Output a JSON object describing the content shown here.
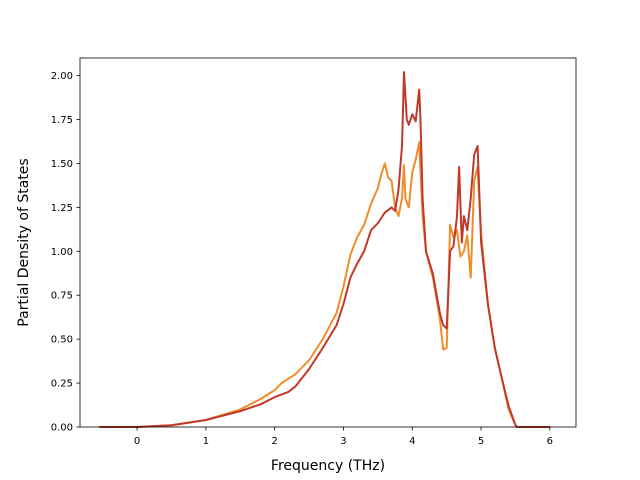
{
  "chart_data": {
    "type": "line",
    "xlabel": "Frequency (THz)",
    "ylabel": "Partial Density of States",
    "xlim": [
      -0.83,
      6.38
    ],
    "ylim": [
      0,
      2.1
    ],
    "xticks": [
      0,
      1,
      2,
      3,
      4,
      5,
      6
    ],
    "yticks": [
      "0.00",
      "0.25",
      "0.50",
      "0.75",
      "1.00",
      "1.25",
      "1.50",
      "1.75",
      "2.00"
    ],
    "grid": false,
    "legend": "none",
    "series": [
      {
        "color": "#f08c2a",
        "x": [
          -0.55,
          0.0,
          0.5,
          1.0,
          1.5,
          1.8,
          2.0,
          2.1,
          2.3,
          2.5,
          2.7,
          2.9,
          3.0,
          3.1,
          3.2,
          3.3,
          3.4,
          3.5,
          3.55,
          3.6,
          3.65,
          3.7,
          3.75,
          3.8,
          3.85,
          3.88,
          3.9,
          3.95,
          4.0,
          4.05,
          4.1,
          4.15,
          4.2,
          4.3,
          4.4,
          4.45,
          4.5,
          4.55,
          4.6,
          4.65,
          4.7,
          4.75,
          4.8,
          4.85,
          4.9,
          4.95,
          5.0,
          5.1,
          5.2,
          5.3,
          5.4,
          5.5,
          5.52,
          5.6,
          6.0
        ],
        "y": [
          0.0,
          0.0,
          0.01,
          0.04,
          0.1,
          0.16,
          0.21,
          0.25,
          0.3,
          0.38,
          0.5,
          0.65,
          0.8,
          0.98,
          1.08,
          1.15,
          1.27,
          1.36,
          1.44,
          1.5,
          1.42,
          1.4,
          1.25,
          1.2,
          1.3,
          1.49,
          1.3,
          1.25,
          1.45,
          1.52,
          1.62,
          1.2,
          1.0,
          0.85,
          0.62,
          0.44,
          0.45,
          1.15,
          1.08,
          1.12,
          0.97,
          1.0,
          1.09,
          0.85,
          1.4,
          1.48,
          1.1,
          0.7,
          0.45,
          0.28,
          0.1,
          0.01,
          0.0,
          0.0,
          0.0
        ]
      },
      {
        "color": "#c0392b",
        "x": [
          -0.55,
          0.0,
          0.5,
          1.0,
          1.5,
          1.8,
          2.0,
          2.2,
          2.3,
          2.5,
          2.7,
          2.9,
          3.0,
          3.1,
          3.2,
          3.3,
          3.35,
          3.4,
          3.5,
          3.6,
          3.7,
          3.75,
          3.8,
          3.85,
          3.88,
          3.92,
          3.95,
          4.0,
          4.05,
          4.1,
          4.12,
          4.15,
          4.2,
          4.3,
          4.4,
          4.45,
          4.5,
          4.55,
          4.6,
          4.65,
          4.68,
          4.72,
          4.75,
          4.8,
          4.85,
          4.9,
          4.95,
          5.0,
          5.1,
          5.2,
          5.3,
          5.4,
          5.5,
          5.52,
          5.6,
          6.0
        ],
        "y": [
          0.0,
          0.0,
          0.01,
          0.04,
          0.09,
          0.13,
          0.17,
          0.2,
          0.23,
          0.33,
          0.45,
          0.58,
          0.7,
          0.85,
          0.93,
          1.0,
          1.06,
          1.12,
          1.16,
          1.22,
          1.25,
          1.23,
          1.35,
          1.6,
          2.02,
          1.75,
          1.72,
          1.78,
          1.74,
          1.92,
          1.75,
          1.3,
          1.0,
          0.87,
          0.65,
          0.58,
          0.56,
          1.0,
          1.03,
          1.2,
          1.48,
          1.05,
          1.2,
          1.12,
          1.3,
          1.55,
          1.6,
          1.05,
          0.7,
          0.45,
          0.28,
          0.12,
          0.01,
          0.0,
          0.0,
          0.0
        ]
      }
    ]
  }
}
